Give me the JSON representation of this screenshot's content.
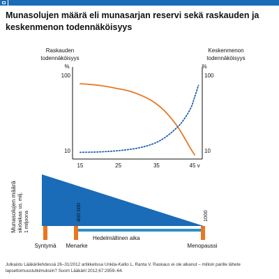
{
  "header": {
    "title_line1": "Munasolujen määrä eli munasarjan reservi sekä raskauden ja",
    "title_line2": "keskenmenon todennäköisyys"
  },
  "colors": {
    "brand_blue": "#1a6bb8",
    "pregnancy_curve": "#e87722",
    "miscarriage_curve": "#1f5fb0",
    "triangle": "#1a6bb8",
    "timeline": "#2c90c8",
    "marker": "#e87722"
  },
  "chart_data": [
    {
      "type": "line",
      "left_axis_label_line1": "Raskauden",
      "left_axis_label_line2": "todennäköisyys",
      "left_unit": "%",
      "right_axis_label_line1": "Keskenmenon",
      "right_axis_label_line2": "todennäköisyys",
      "right_unit": "%",
      "left_ticks": [
        {
          "label": "100",
          "value": 100
        },
        {
          "label": "10",
          "value": 10
        }
      ],
      "right_ticks": [
        {
          "label": "100",
          "value": 100
        },
        {
          "label": "10",
          "value": 10
        }
      ],
      "x_ticks": [
        "15",
        "25",
        "35",
        "45 v"
      ],
      "x_tick_values": [
        15,
        25,
        35,
        45
      ],
      "xlim": [
        13,
        47
      ],
      "ylim": [
        0,
        110
      ],
      "series": [
        {
          "style": "solid",
          "color": "#e87722",
          "x": [
            15,
            20,
            25,
            28,
            31,
            34,
            37,
            40,
            42,
            44,
            45
          ],
          "y": [
            90,
            88,
            84,
            81,
            76,
            69,
            58,
            42,
            28,
            12,
            5
          ]
        },
        {
          "style": "dotted",
          "color": "#1f5fb0",
          "x": [
            15,
            20,
            25,
            30,
            34,
            37,
            40,
            42,
            44,
            45,
            46
          ],
          "y": [
            8,
            8.5,
            10,
            13,
            18,
            25,
            36,
            46,
            61,
            74,
            88
          ]
        }
      ]
    },
    {
      "type": "area",
      "ylabel_line1": "Munasolujen määrä",
      "ylabel_line2": "sikiöaikaa: us. milj.",
      "ylabel_line3": "1 miljoona",
      "bar_labels": [
        {
          "label": "400 000",
          "at": "Menarke"
        },
        {
          "label": "1000",
          "at": "Menopaussi"
        }
      ],
      "milestones": [
        {
          "label": "Syntymä"
        },
        {
          "label": "Menarke"
        },
        {
          "label": "Menopaussi"
        }
      ],
      "span_label": "Hedelmällinen aika"
    }
  ],
  "footer": {
    "caption_line1": "Julkaistu Lääkärilehdessä 26–31/2012 artikkelissa Unkila-Kallio L, Ranta V. Raskaus ei ole alkanut – milloin parille lähete",
    "caption_line2": "lapsettomuustutkimuksiin? Suom Lääkäril 2012;67:2959–64."
  }
}
